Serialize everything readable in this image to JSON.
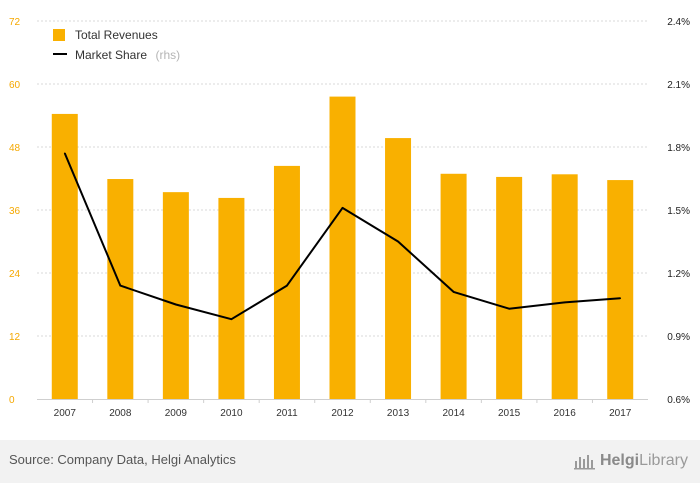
{
  "chart_data": {
    "type": "bar",
    "categories": [
      "2007",
      "2008",
      "2009",
      "2010",
      "2011",
      "2012",
      "2013",
      "2014",
      "2015",
      "2016",
      "2017"
    ],
    "series": [
      {
        "name": "Total Revenues",
        "type": "bar",
        "axis": "left",
        "color": "#f9b000",
        "values": [
          54.3,
          41.9,
          39.4,
          38.3,
          44.4,
          57.6,
          49.7,
          42.9,
          42.3,
          42.8,
          41.7
        ]
      },
      {
        "name": "Market Share",
        "type": "line",
        "axis": "right",
        "color": "#000000",
        "values": [
          1.77,
          1.14,
          1.05,
          0.98,
          1.14,
          1.51,
          1.35,
          1.11,
          1.03,
          1.06,
          1.08
        ]
      }
    ],
    "left_axis": {
      "min": 0,
      "max": 72,
      "ticks": [
        "0",
        "12",
        "24",
        "36",
        "48",
        "60",
        "72"
      ]
    },
    "right_axis": {
      "min": 0.6,
      "max": 2.4,
      "ticks": [
        "0.6%",
        "0.9%",
        "1.2%",
        "1.5%",
        "1.8%",
        "2.1%",
        "2.4%"
      ]
    },
    "legend": {
      "position": "top-left",
      "items": [
        {
          "label": "Total Revenues",
          "note": ""
        },
        {
          "label": "Market Share",
          "note": "(rhs)"
        }
      ]
    },
    "grid": "horizontal-dashed"
  },
  "footer": {
    "source": "Source: Company Data, Helgi Analytics",
    "brand_prefix": "Helgi",
    "brand_suffix": "Library"
  }
}
